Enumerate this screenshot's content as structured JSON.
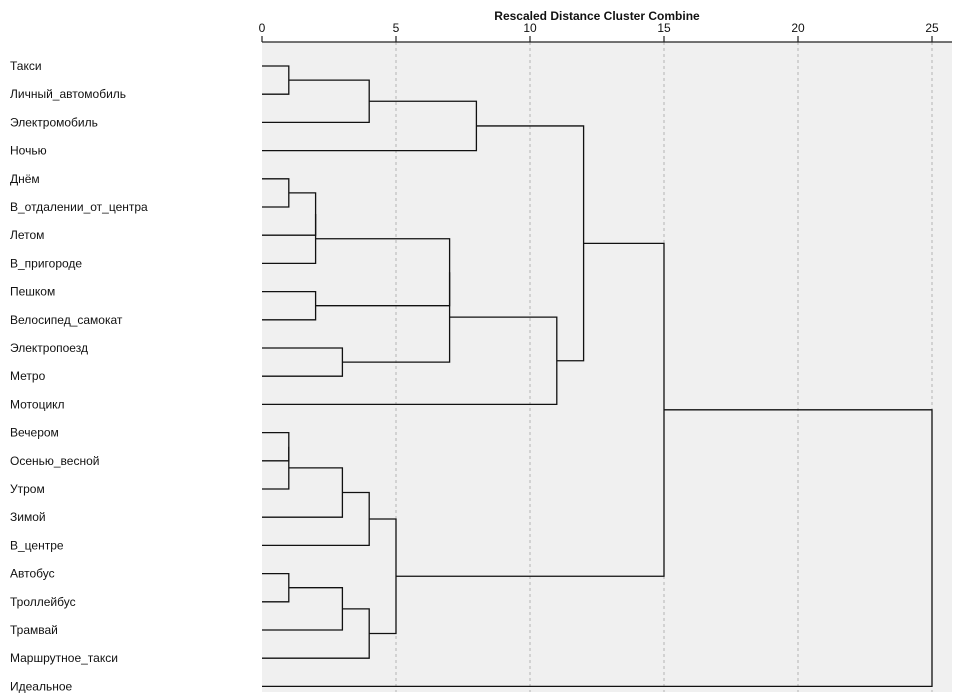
{
  "chart_data": {
    "type": "dendrogram",
    "title": "Rescaled Distance Cluster Combine",
    "axis": {
      "min": 0,
      "max": 25,
      "ticks": [
        0,
        5,
        10,
        15,
        20,
        25
      ],
      "tick_labels": [
        "0",
        "5",
        "10",
        "15",
        "20",
        "25"
      ],
      "grid": true
    },
    "cases": [
      "Такси",
      "Личный_автомобиль",
      "Электромобиль",
      "Ночью",
      "Днём",
      "В_отдалении_от_центра",
      "Летом",
      "В_пригороде",
      "Пешком",
      "Велосипед_самокат",
      "Электропоезд",
      "Метро",
      "Мотоцикл",
      "Вечером",
      "Осенью_весной",
      "Утром",
      "Зимой",
      "В_центре",
      "Автобус",
      "Троллейбус",
      "Трамвай",
      "Маршрутное_такси",
      "Идеальное"
    ],
    "merges": [
      {
        "a": "c0",
        "b": "c1",
        "distance": 1,
        "id": "m1"
      },
      {
        "a": "m1",
        "b": "c2",
        "distance": 4,
        "id": "m2"
      },
      {
        "a": "m2",
        "b": "c3",
        "distance": 8,
        "id": "m3"
      },
      {
        "a": "c4",
        "b": "c5",
        "distance": 1,
        "id": "m4"
      },
      {
        "a": "m4",
        "b": "c6",
        "distance": 2,
        "id": "m5"
      },
      {
        "a": "m5",
        "b": "c7",
        "distance": 2,
        "id": "m6"
      },
      {
        "a": "c8",
        "b": "c9",
        "distance": 2,
        "id": "m7"
      },
      {
        "a": "c10",
        "b": "c11",
        "distance": 3,
        "id": "m8"
      },
      {
        "a": "m6",
        "b": "m7",
        "distance": 7,
        "id": "m9"
      },
      {
        "a": "m9",
        "b": "m8",
        "distance": 7,
        "id": "m10"
      },
      {
        "a": "m10",
        "b": "c12",
        "distance": 11,
        "id": "m11"
      },
      {
        "a": "m3",
        "b": "m11",
        "distance": 12,
        "id": "m12"
      },
      {
        "a": "c13",
        "b": "c14",
        "distance": 1,
        "id": "m13"
      },
      {
        "a": "m13",
        "b": "c15",
        "distance": 1,
        "id": "m14"
      },
      {
        "a": "m14",
        "b": "c16",
        "distance": 3,
        "id": "m15"
      },
      {
        "a": "m15",
        "b": "c17",
        "distance": 4,
        "id": "m16"
      },
      {
        "a": "c18",
        "b": "c19",
        "distance": 1,
        "id": "m17"
      },
      {
        "a": "m17",
        "b": "c20",
        "distance": 3,
        "id": "m18"
      },
      {
        "a": "m18",
        "b": "c21",
        "distance": 4,
        "id": "m19"
      },
      {
        "a": "m16",
        "b": "m19",
        "distance": 5,
        "id": "m20"
      },
      {
        "a": "m12",
        "b": "m20",
        "distance": 15,
        "id": "m21"
      },
      {
        "a": "m21",
        "b": "c22",
        "distance": 25,
        "id": "m22"
      }
    ],
    "colors": {
      "background": "#f0f0f0",
      "axis": "#222222",
      "grid": "#b5b5b5",
      "link": "#111111",
      "text": "#111111"
    }
  }
}
